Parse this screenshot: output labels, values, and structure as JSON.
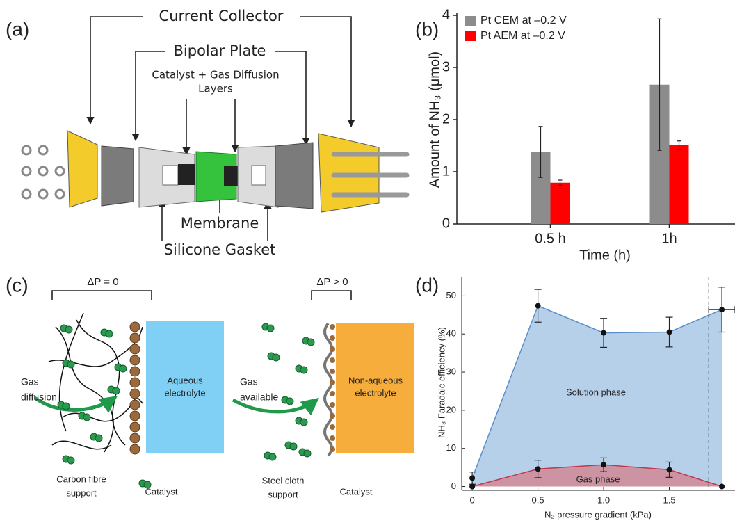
{
  "panel_labels": [
    "(a)",
    "(b)",
    "(c)",
    "(d)"
  ],
  "diagram_a": {
    "current_collector": "Current Collector",
    "bipolar_plate": "Bipolar Plate",
    "catalyst_layers": [
      "Catalyst + Gas Diffusion",
      "Layers"
    ],
    "membrane": "Membrane",
    "silicone_gasket": "Silicone Gasket"
  },
  "diagram_c": {
    "left": {
      "delta_p": "ΔP = 0",
      "gas": [
        "Gas",
        "diffusion"
      ],
      "electrolyte": [
        "Aqueous",
        "electrolyte"
      ],
      "support": [
        "Carbon fibre",
        "support"
      ],
      "catalyst": "Catalyst"
    },
    "right": {
      "delta_p": "ΔP > 0",
      "gas": [
        "Gas",
        "available"
      ],
      "electrolyte": [
        "Non-aqueous",
        "electrolyte"
      ],
      "support": [
        "Steel cloth",
        "support"
      ],
      "catalyst": "Catalyst"
    }
  },
  "chart_data": [
    {
      "type": "bar",
      "x_label": "Time (h)",
      "y_label": "Amount of NH₃ (μmol)",
      "categories": [
        "0.5 h",
        "1h"
      ],
      "series": [
        {
          "name": "Pt CEM at –0.2 V",
          "color": "#8c8c8c",
          "values": [
            1.38,
            2.67
          ],
          "errors": [
            0.49,
            1.26
          ]
        },
        {
          "name": "Pt AEM at –0.2 V",
          "color": "#ff0000",
          "values": [
            0.79,
            1.51
          ],
          "errors": [
            0.05,
            0.08
          ]
        }
      ],
      "ylim": [
        0,
        4
      ],
      "yticks": [
        0,
        1,
        2,
        3,
        4
      ],
      "legend": "top-left"
    },
    {
      "type": "area",
      "x_label": "N₂ pressure gradient (kPa)",
      "y_label": "NH₃ Faradaic efficiency (%)",
      "x": [
        0,
        0.5,
        1,
        1.5,
        1.9
      ],
      "xerr": [
        null,
        null,
        null,
        null,
        0.1
      ],
      "series": [
        {
          "name": "Solution phase",
          "color": "#5b8fc9",
          "fill": "#a9c8e6",
          "values": [
            2.2,
            47.4,
            40.3,
            40.5,
            46.4
          ],
          "errors": [
            1.6,
            4.3,
            3.8,
            3.9,
            5.9
          ]
        },
        {
          "name": "Gas phase",
          "color": "#c0394b",
          "fill": "#d08a95",
          "values": [
            0,
            4.6,
            5.7,
            4.4,
            0
          ],
          "errors": [
            null,
            2.3,
            1.8,
            2.0,
            null
          ]
        }
      ],
      "xlim": [
        -0.08,
        2.0
      ],
      "ylim": [
        -1,
        55
      ],
      "xticks": [
        0,
        0.5,
        {
          "value": 1,
          "label": "1.0"
        },
        1.5
      ],
      "yticks": [
        0,
        10,
        20,
        30,
        40,
        50
      ],
      "vline": 1.8
    }
  ]
}
